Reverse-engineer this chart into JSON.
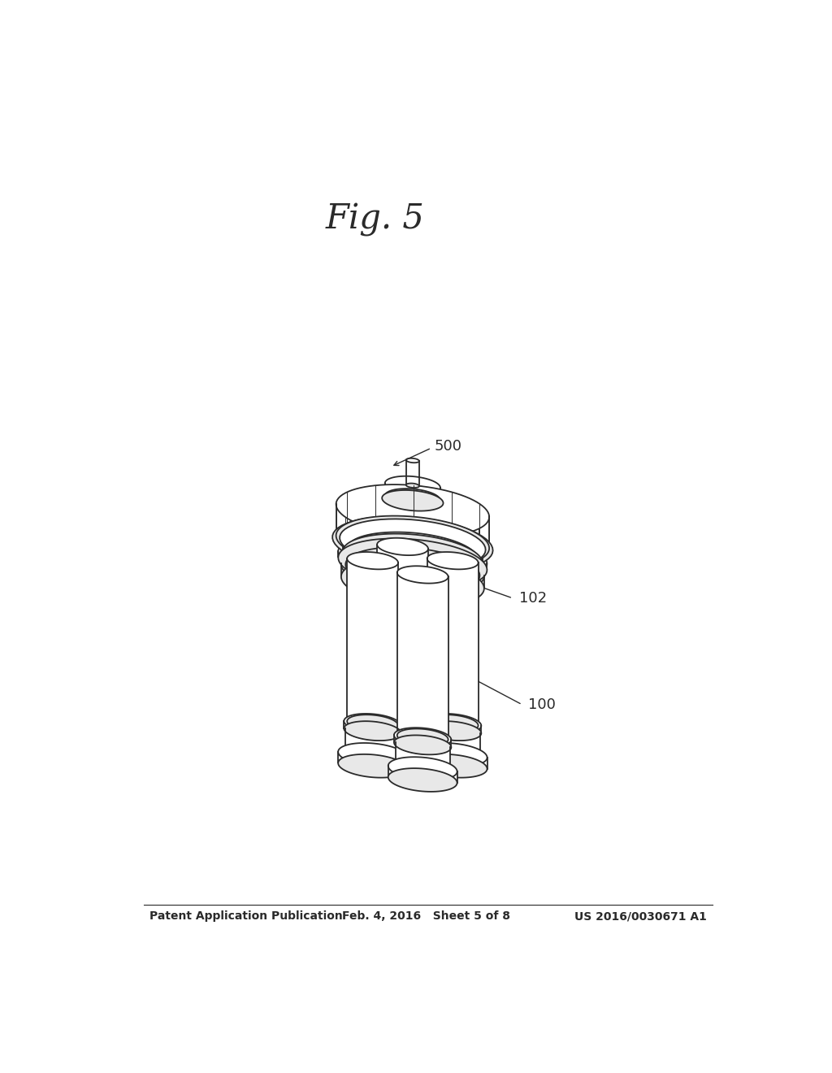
{
  "background_color": "#ffffff",
  "header_left": "Patent Application Publication",
  "header_center": "Feb. 4, 2016   Sheet 5 of 8",
  "header_right": "US 2016/0030671 A1",
  "fig_caption": "Fig. 5",
  "line_color": "#2a2a2a",
  "fill_white": "#ffffff",
  "fill_light": "#e8e8e8",
  "fill_mid": "#d0d0d0"
}
